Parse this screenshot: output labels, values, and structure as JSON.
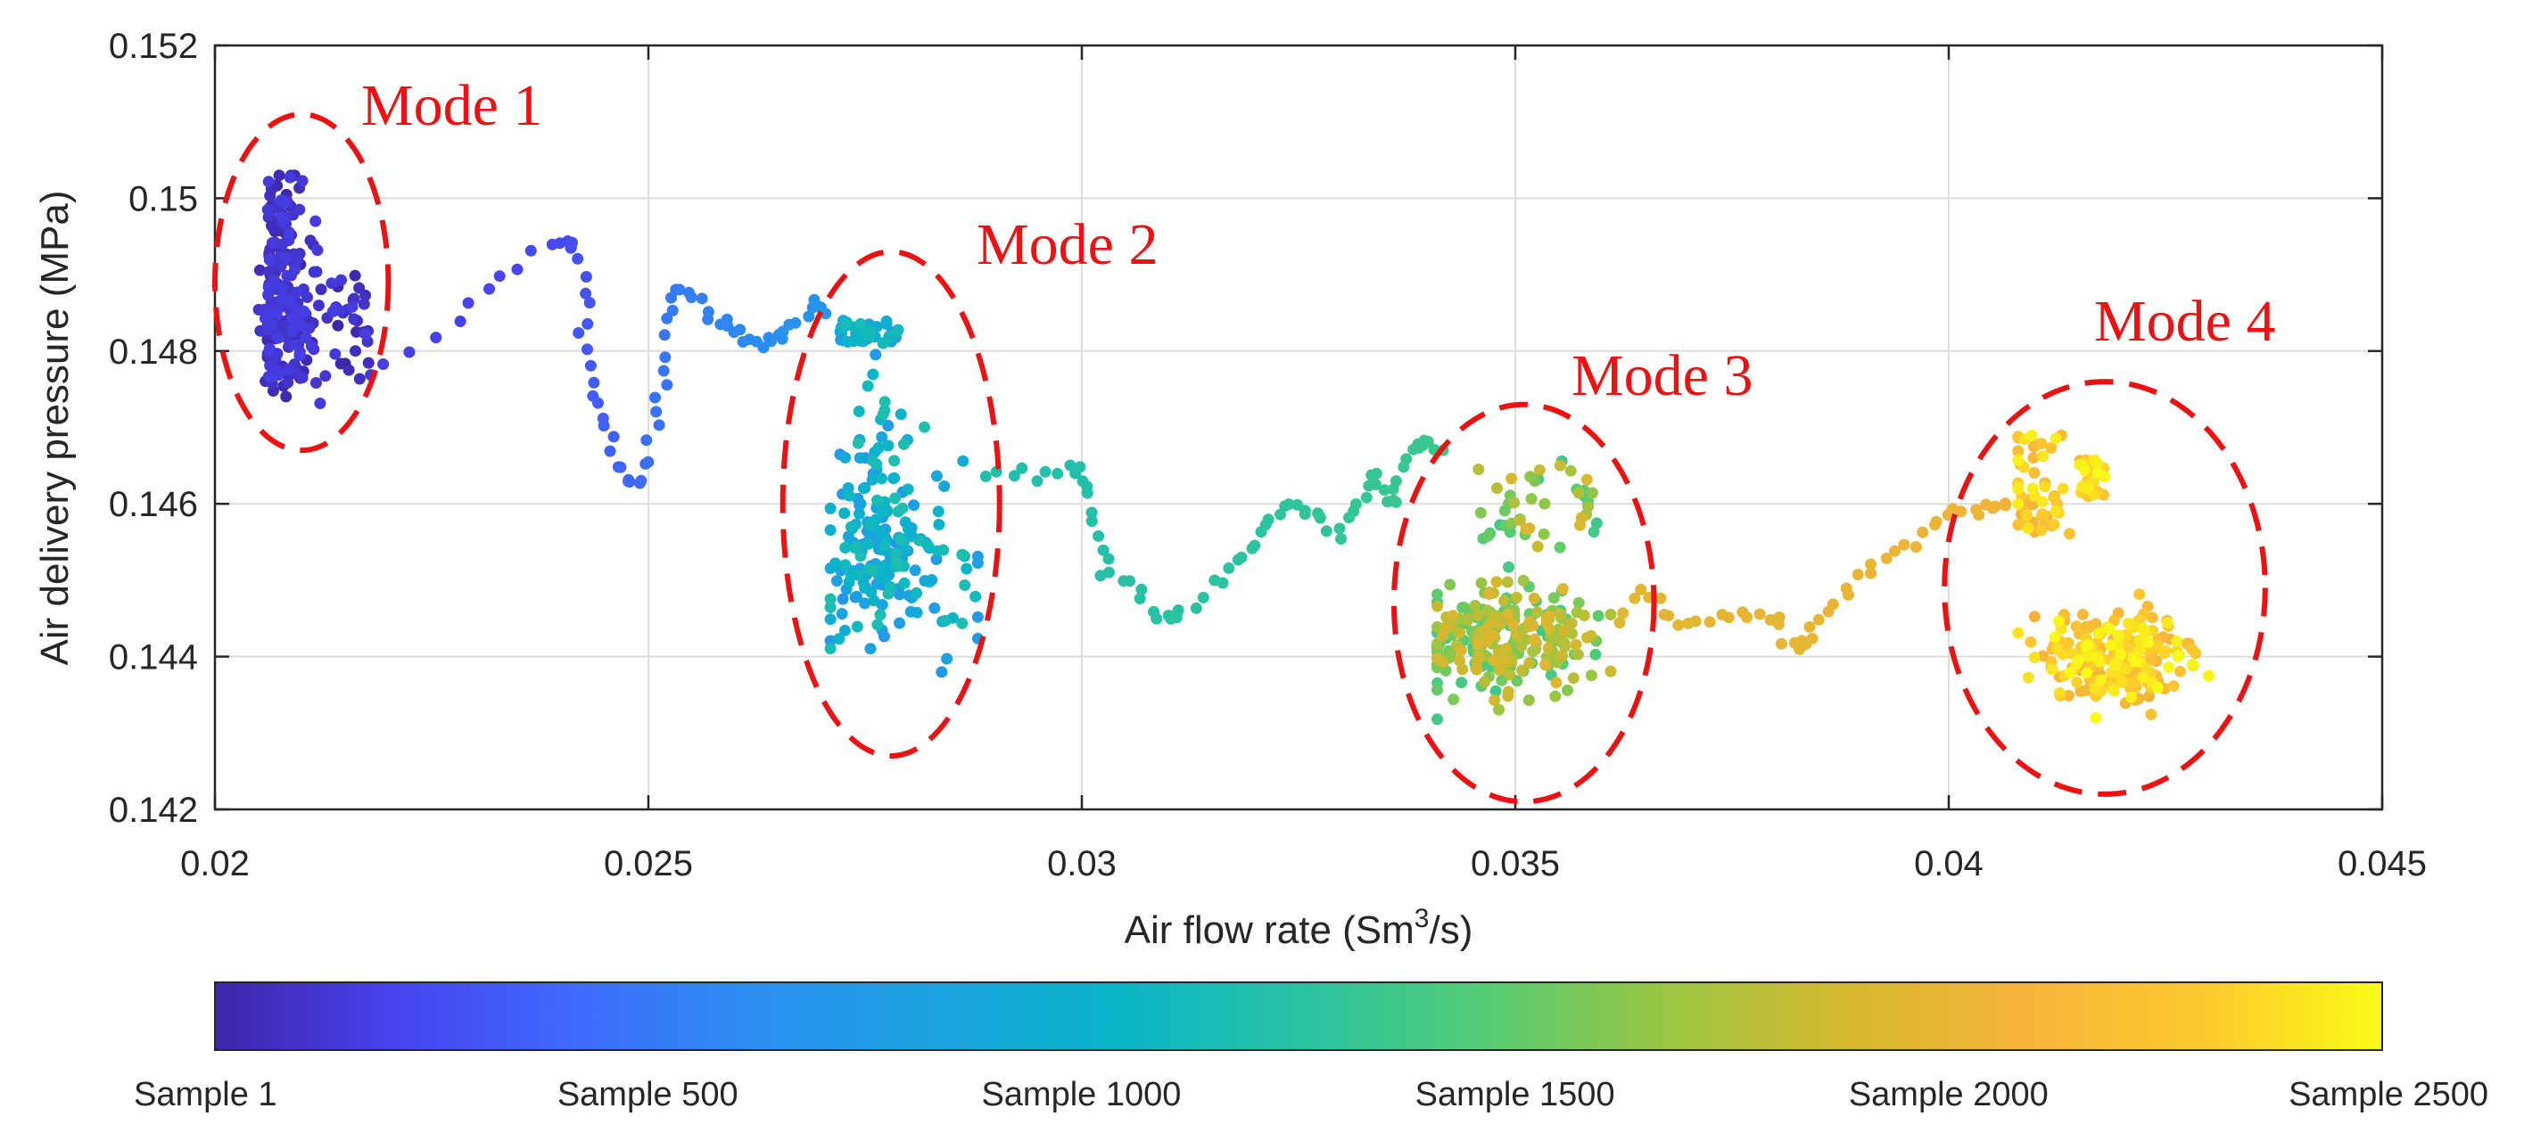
{
  "chart_data": {
    "type": "scatter",
    "title": "",
    "xlabel": "Air flow rate (Sm",
    "xlabel_sup": "3",
    "xlabel_end": "/s)",
    "ylabel": "Air delivery pressure (MPa)",
    "xlim": [
      0.02,
      0.045
    ],
    "ylim": [
      0.142,
      0.152
    ],
    "x_ticks": [
      0.02,
      0.025,
      0.03,
      0.035,
      0.04,
      0.045
    ],
    "x_tick_labels": [
      "0.02",
      "0.025",
      "0.03",
      "0.035",
      "0.04",
      "0.045"
    ],
    "y_ticks": [
      0.142,
      0.144,
      0.146,
      0.148,
      0.15,
      0.152
    ],
    "y_tick_labels": [
      "0.142",
      "0.144",
      "0.146",
      "0.148",
      "0.15",
      "0.152"
    ],
    "grid": true,
    "colorbar": {
      "orientation": "horizontal",
      "placement": "bottom",
      "colormap": [
        "#3e26a8",
        "#4743f0",
        "#3f6bfd",
        "#2b8ff0",
        "#1ba3e0",
        "#09b5c8",
        "#28c2a3",
        "#53cc76",
        "#98c643",
        "#d3b82e",
        "#f6b43a",
        "#fdc92e",
        "#f9fb15"
      ],
      "labels": [
        "Sample 1",
        "Sample 500",
        "Sample 1000",
        "Sample 1500",
        "Sample 2000",
        "Sample 2500"
      ],
      "samples": [
        1,
        500,
        1000,
        1500,
        2000,
        2500
      ]
    },
    "clusters": [
      {
        "name": "Mode 1",
        "x_range": [
          0.0205,
          0.0218
        ],
        "y_range": [
          0.1472,
          0.1503
        ],
        "sample_range": [
          1,
          180
        ],
        "count": 260
      },
      {
        "name": "Mode 2",
        "x_range": [
          0.0271,
          0.0288
        ],
        "y_range": [
          0.1434,
          0.1484
        ],
        "sample_range": [
          700,
          1200
        ],
        "count": 260
      },
      {
        "name": "Mode 3",
        "x_range": [
          0.0341,
          0.0361
        ],
        "y_range": [
          0.1427,
          0.1468
        ],
        "sample_range": [
          1350,
          1950
        ],
        "count": 300
      },
      {
        "name": "Mode 4",
        "x_range": [
          0.0408,
          0.0431
        ],
        "y_range": [
          0.1429,
          0.147
        ],
        "sample_range": [
          2050,
          2500
        ],
        "count": 300
      }
    ],
    "transition_paths": [
      {
        "from": "Mode 1",
        "to": "Mode 2",
        "sample_range": [
          180,
          700
        ],
        "points": [
          [
            0.0219,
            0.1478
          ],
          [
            0.0228,
            0.1484
          ],
          [
            0.0233,
            0.149
          ],
          [
            0.0239,
            0.1494
          ],
          [
            0.0241,
            0.1494
          ],
          [
            0.0242,
            0.1492
          ],
          [
            0.0243,
            0.1486
          ],
          [
            0.0243,
            0.148
          ],
          [
            0.0244,
            0.1474
          ],
          [
            0.0245,
            0.147
          ],
          [
            0.0246,
            0.1465
          ],
          [
            0.0248,
            0.1463
          ],
          [
            0.0249,
            0.1463
          ],
          [
            0.025,
            0.1468
          ],
          [
            0.0251,
            0.1474
          ],
          [
            0.0252,
            0.148
          ],
          [
            0.0253,
            0.1486
          ],
          [
            0.0254,
            0.1488
          ],
          [
            0.0256,
            0.1486
          ],
          [
            0.0258,
            0.1484
          ],
          [
            0.026,
            0.1483
          ],
          [
            0.0262,
            0.1481
          ],
          [
            0.0264,
            0.1481
          ],
          [
            0.0265,
            0.1482
          ],
          [
            0.0267,
            0.1484
          ],
          [
            0.0269,
            0.1486
          ],
          [
            0.027,
            0.1485
          ]
        ]
      },
      {
        "from": "Mode 2",
        "to": "Mode 3",
        "sample_range": [
          1200,
          1350
        ],
        "points": [
          [
            0.0289,
            0.1464
          ],
          [
            0.0293,
            0.1464
          ],
          [
            0.0297,
            0.1464
          ],
          [
            0.03,
            0.1465
          ],
          [
            0.0301,
            0.1461
          ],
          [
            0.0302,
            0.1456
          ],
          [
            0.0303,
            0.1451
          ],
          [
            0.0306,
            0.145
          ],
          [
            0.0308,
            0.1446
          ],
          [
            0.031,
            0.1445
          ],
          [
            0.0312,
            0.1446
          ],
          [
            0.0315,
            0.1449
          ],
          [
            0.0318,
            0.1452
          ],
          [
            0.032,
            0.1455
          ],
          [
            0.0322,
            0.1458
          ],
          [
            0.0324,
            0.146
          ],
          [
            0.0326,
            0.1459
          ],
          [
            0.0328,
            0.1458
          ],
          [
            0.033,
            0.1456
          ],
          [
            0.0332,
            0.146
          ],
          [
            0.0333,
            0.1464
          ],
          [
            0.0335,
            0.1462
          ],
          [
            0.0336,
            0.146
          ],
          [
            0.0337,
            0.1465
          ],
          [
            0.0339,
            0.1467
          ],
          [
            0.034,
            0.1468
          ],
          [
            0.0342,
            0.1467
          ]
        ]
      },
      {
        "from": "Mode 3",
        "to": "Mode 4",
        "sample_range": [
          1950,
          2050
        ],
        "points": [
          [
            0.0362,
            0.1445
          ],
          [
            0.0365,
            0.1448
          ],
          [
            0.0367,
            0.1446
          ],
          [
            0.037,
            0.1444
          ],
          [
            0.0374,
            0.1445
          ],
          [
            0.0377,
            0.1445
          ],
          [
            0.038,
            0.1445
          ],
          [
            0.0382,
            0.1441
          ],
          [
            0.0383,
            0.1442
          ],
          [
            0.0385,
            0.1445
          ],
          [
            0.0388,
            0.1448
          ],
          [
            0.0391,
            0.1451
          ],
          [
            0.0394,
            0.1454
          ],
          [
            0.0397,
            0.1456
          ],
          [
            0.04,
            0.1458
          ],
          [
            0.0403,
            0.1459
          ],
          [
            0.0405,
            0.146
          ],
          [
            0.0407,
            0.146
          ]
        ]
      }
    ],
    "annotations": [
      {
        "label": "Mode 1",
        "style": "dashed ellipse",
        "color": "#ee1111",
        "center": [
          0.021,
          0.1489
        ],
        "radius": [
          0.001,
          0.0022
        ]
      },
      {
        "label": "Mode 2",
        "style": "dashed ellipse",
        "color": "#ee1111",
        "center": [
          0.0278,
          0.146
        ],
        "radius": [
          0.00125,
          0.0033
        ]
      },
      {
        "label": "Mode 3",
        "style": "dashed ellipse",
        "color": "#ee1111",
        "center": [
          0.0351,
          0.1447
        ],
        "radius": [
          0.0015,
          0.0026
        ]
      },
      {
        "label": "Mode 4",
        "style": "dashed ellipse",
        "color": "#ee1111",
        "center": [
          0.0418,
          0.1449
        ],
        "radius": [
          0.00185,
          0.0027
        ]
      }
    ]
  }
}
